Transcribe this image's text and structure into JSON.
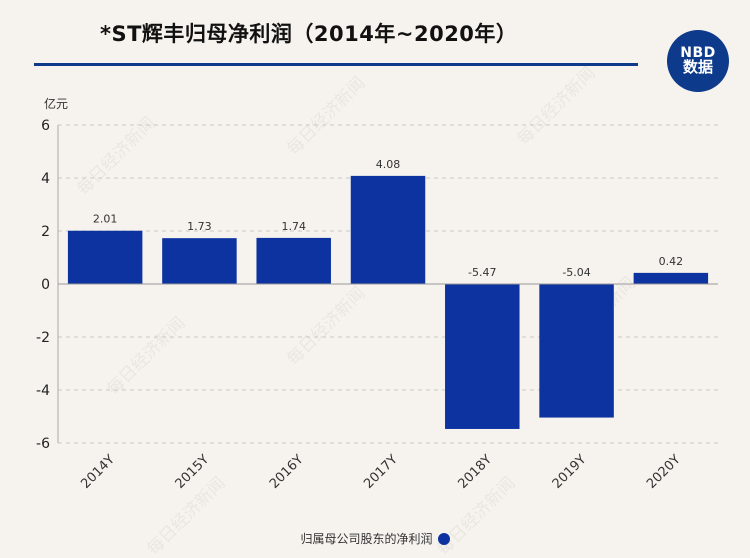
{
  "header": {
    "title": "*ST辉丰归母净利润（2014年~2020年）",
    "logo_top": "NBD",
    "logo_bottom": "数据"
  },
  "watermark": "每日经济新闻",
  "colors": {
    "bar": "#0d33a0",
    "accent": "#0d3a8a",
    "background": "#f6f3ee"
  },
  "chart_data": {
    "type": "bar",
    "categories": [
      "2014Y",
      "2015Y",
      "2016Y",
      "2017Y",
      "2018Y",
      "2019Y",
      "2020Y"
    ],
    "series": [
      {
        "name": "归属母公司股东的净利润",
        "values": [
          2.01,
          1.73,
          1.74,
          4.08,
          -5.47,
          -5.04,
          0.42
        ]
      }
    ],
    "value_labels": [
      "2.01",
      "1.73",
      "1.74",
      "4.08",
      "-5.47",
      "-5.04",
      "0.42"
    ],
    "ylabel": "亿元",
    "ylim": [
      -6,
      6
    ],
    "yticks": [
      6,
      4,
      2,
      0,
      -2,
      -4,
      -6
    ],
    "grid": true,
    "legend_position": "bottom"
  }
}
